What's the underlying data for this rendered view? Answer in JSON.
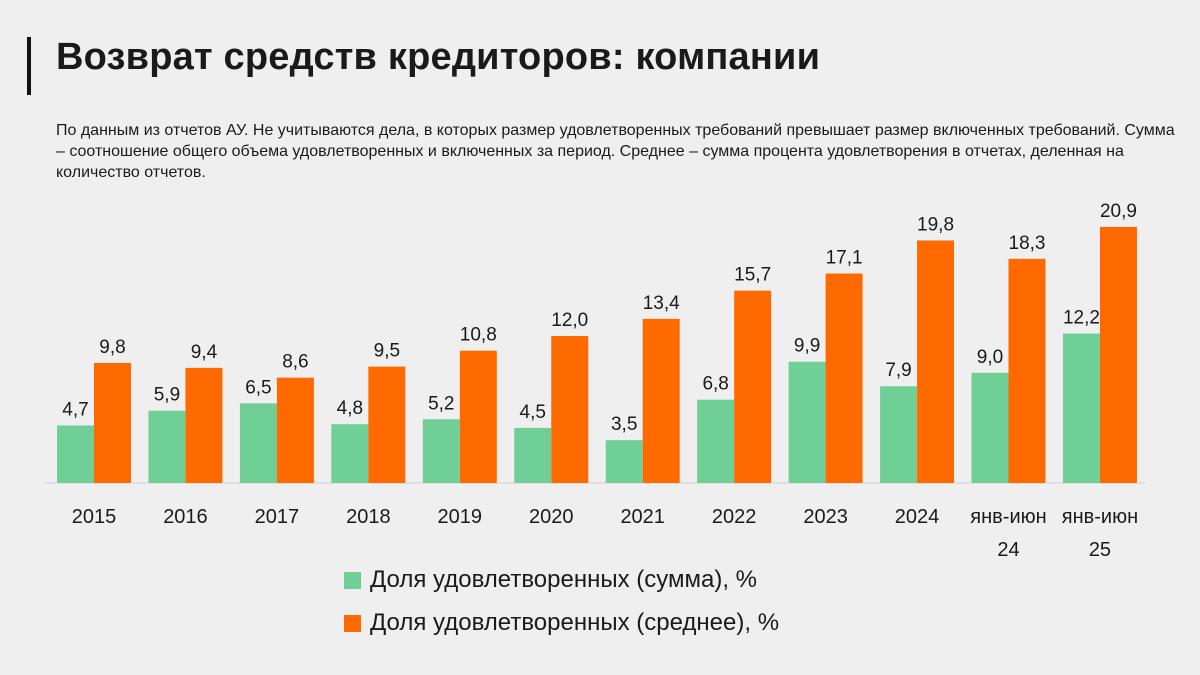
{
  "title": "Возврат средств кредиторов: компании",
  "subtitle": "По данным из отчетов АУ. Не учитываются дела, в которых размер удовлетворенных требований превышает размер включенных требований. Сумма – соотношение общего объема удовлетворенных и включенных за период. Среднее – сумма процента удовлетворения в отчетах, деленная на количество отчетов.",
  "chart_data": {
    "type": "bar",
    "categories": [
      "2015",
      "2016",
      "2017",
      "2018",
      "2019",
      "2020",
      "2021",
      "2022",
      "2023",
      "2024",
      "янв-июня 24",
      "янв-июня 25"
    ],
    "category_lines": [
      [
        "2015"
      ],
      [
        "2016"
      ],
      [
        "2017"
      ],
      [
        "2018"
      ],
      [
        "2019"
      ],
      [
        "2020"
      ],
      [
        "2021"
      ],
      [
        "2022"
      ],
      [
        "2023"
      ],
      [
        "2024"
      ],
      [
        "янв-июн",
        "24"
      ],
      [
        "янв-июн",
        "25"
      ]
    ],
    "series": [
      {
        "name": "Доля удовлетворенных (сумма), %",
        "color": "#6fcf97",
        "values": [
          4.7,
          5.9,
          6.5,
          4.8,
          5.2,
          4.5,
          3.5,
          6.8,
          9.9,
          7.9,
          9.0,
          12.2
        ],
        "labels": [
          "4,7",
          "5,9",
          "6,5",
          "4,8",
          "5,2",
          "4,5",
          "3,5",
          "6,8",
          "9,9",
          "7,9",
          "9,0",
          "12,2"
        ]
      },
      {
        "name": "Доля удовлетворенных (среднее), %",
        "color": "#ff6a00",
        "values": [
          9.8,
          9.4,
          8.6,
          9.5,
          10.8,
          12.0,
          13.4,
          15.7,
          17.1,
          19.8,
          18.3,
          20.9
        ],
        "labels": [
          "9,8",
          "9,4",
          "8,6",
          "9,5",
          "10,8",
          "12,0",
          "13,4",
          "15,7",
          "17,1",
          "19,8",
          "18,3",
          "20,9"
        ]
      }
    ],
    "ylim": [
      0,
      21
    ],
    "grid": false,
    "legend": "bottom"
  }
}
